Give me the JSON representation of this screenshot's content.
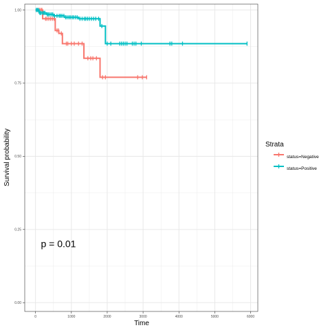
{
  "chart_data": {
    "type": "line",
    "subtype": "kaplan-meier-step",
    "xlabel": "Time",
    "ylabel": "Survival probability",
    "xlim": [
      -300,
      6200
    ],
    "ylim": [
      -0.03,
      1.02
    ],
    "x_ticks": [
      0,
      1000,
      2000,
      3000,
      4000,
      5000,
      6000
    ],
    "x_tick_labels": [
      "0",
      "1000",
      "2000",
      "3000",
      "4000",
      "5000",
      "6000"
    ],
    "y_ticks": [
      0.0,
      0.25,
      0.5,
      0.75,
      1.0
    ],
    "y_tick_labels": [
      "0.00",
      "0.25",
      "0.50",
      "0.75",
      "1.00"
    ],
    "grid": true,
    "legend": {
      "title": "Strata",
      "position": "right"
    },
    "annotation": {
      "text": "p = 0.01",
      "x": 150,
      "y": 0.19
    },
    "series": [
      {
        "name": "status=Negative",
        "color": "#F8766D",
        "steps": [
          [
            0,
            1.0
          ],
          [
            200,
            0.97
          ],
          [
            550,
            0.93
          ],
          [
            650,
            0.92
          ],
          [
            750,
            0.885
          ],
          [
            1350,
            0.835
          ],
          [
            1800,
            0.77
          ],
          [
            3100,
            0.77
          ]
        ],
        "censor_times": [
          60,
          110,
          150,
          180,
          280,
          320,
          370,
          420,
          470,
          520,
          600,
          640,
          720,
          860,
          900,
          1000,
          1080,
          1200,
          1300,
          1460,
          1540,
          1600,
          1700,
          1870,
          1950,
          2850,
          2980,
          3100
        ]
      },
      {
        "name": "status=Positive",
        "color": "#00BFC4",
        "steps": [
          [
            0,
            1.0
          ],
          [
            100,
            0.99
          ],
          [
            300,
            0.985
          ],
          [
            500,
            0.98
          ],
          [
            800,
            0.975
          ],
          [
            1200,
            0.97
          ],
          [
            1800,
            0.945
          ],
          [
            1950,
            0.885
          ],
          [
            5900,
            0.885
          ]
        ],
        "censor_times": [
          20,
          50,
          80,
          120,
          150,
          190,
          230,
          260,
          330,
          360,
          400,
          440,
          480,
          530,
          600,
          660,
          700,
          740,
          790,
          840,
          880,
          930,
          970,
          1020,
          1060,
          1110,
          1160,
          1240,
          1300,
          1360,
          1400,
          1450,
          1500,
          1560,
          1620,
          1680,
          1760,
          1850,
          2000,
          2100,
          2350,
          2400,
          2450,
          2500,
          2550,
          2700,
          2750,
          2800,
          2950,
          3750,
          3800,
          4100,
          5900
        ]
      }
    ]
  }
}
